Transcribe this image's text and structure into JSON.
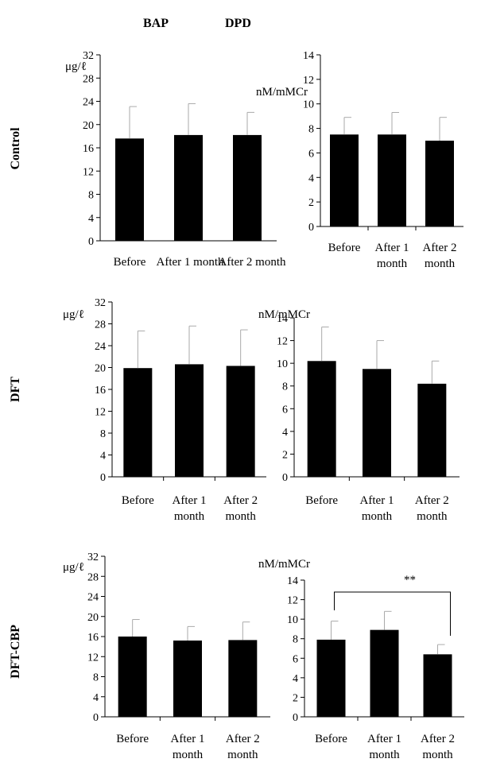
{
  "headers": {
    "left": "BAP",
    "right": "DPD"
  },
  "chart_data": [
    {
      "id": "control-bap",
      "type": "bar",
      "row_label": "Control",
      "unit": "μg/ℓ",
      "categories": [
        [
          "Before"
        ],
        [
          "After 1 month"
        ],
        [
          "After 2 month"
        ]
      ],
      "values": [
        17.6,
        18.2,
        18.2
      ],
      "errors": [
        5.5,
        5.4,
        3.9
      ],
      "yticks": [
        "0",
        "4",
        "8",
        "12",
        "16",
        "20",
        "24",
        "28",
        "32"
      ],
      "ylim": [
        0,
        32
      ]
    },
    {
      "id": "control-dpd",
      "type": "bar",
      "row_label": "Control",
      "unit": "nM/mMCr",
      "categories": [
        [
          "Before"
        ],
        [
          "After 1",
          "month"
        ],
        [
          "After 2",
          "month"
        ]
      ],
      "values": [
        7.5,
        7.5,
        7.0
      ],
      "errors": [
        1.4,
        1.8,
        1.9
      ],
      "yticks": [
        "0",
        "2",
        "4",
        "6",
        "8",
        "10",
        "12",
        "14"
      ],
      "ylim": [
        0,
        14
      ]
    },
    {
      "id": "dft-bap",
      "type": "bar",
      "row_label": "DFT",
      "unit": "μg/ℓ",
      "categories": [
        [
          "Before"
        ],
        [
          "After 1",
          "month"
        ],
        [
          "After 2",
          "month"
        ]
      ],
      "values": [
        19.9,
        20.6,
        20.3
      ],
      "errors": [
        6.8,
        7.0,
        6.6
      ],
      "yticks": [
        "0",
        "4",
        "8",
        "12",
        "16",
        "20",
        "24",
        "28",
        "32"
      ],
      "ylim": [
        0,
        32
      ]
    },
    {
      "id": "dft-dpd",
      "type": "bar",
      "row_label": "DFT",
      "unit": "nM/mMCr",
      "categories": [
        [
          "Before"
        ],
        [
          "After 1",
          "month"
        ],
        [
          "After 2",
          "month"
        ]
      ],
      "values": [
        10.2,
        9.5,
        8.2
      ],
      "errors": [
        3.0,
        2.5,
        2.0
      ],
      "yticks": [
        "0",
        "2",
        "4",
        "6",
        "8",
        "10",
        "12",
        "14"
      ],
      "ylim": [
        0,
        14
      ]
    },
    {
      "id": "dftcbp-bap",
      "type": "bar",
      "row_label": "DFT-CBP",
      "unit": "μg/ℓ",
      "categories": [
        [
          "Before"
        ],
        [
          "After 1",
          "month"
        ],
        [
          "After 2",
          "month"
        ]
      ],
      "values": [
        16.0,
        15.2,
        15.3
      ],
      "errors": [
        3.4,
        2.8,
        3.6
      ],
      "yticks": [
        "0",
        "4",
        "8",
        "12",
        "16",
        "20",
        "24",
        "28",
        "32"
      ],
      "ylim": [
        0,
        32
      ]
    },
    {
      "id": "dftcbp-dpd",
      "type": "bar",
      "row_label": "DFT-CBP",
      "unit": "nM/mMCr",
      "categories": [
        [
          "Before"
        ],
        [
          "After 1",
          "month"
        ],
        [
          "After 2",
          "month"
        ]
      ],
      "values": [
        7.9,
        8.9,
        6.4
      ],
      "errors": [
        1.9,
        1.9,
        1.0
      ],
      "yticks": [
        "0",
        "2",
        "4",
        "6",
        "8",
        "10",
        "12",
        "14"
      ],
      "ylim": [
        0,
        14
      ],
      "annotation": "**"
    }
  ]
}
